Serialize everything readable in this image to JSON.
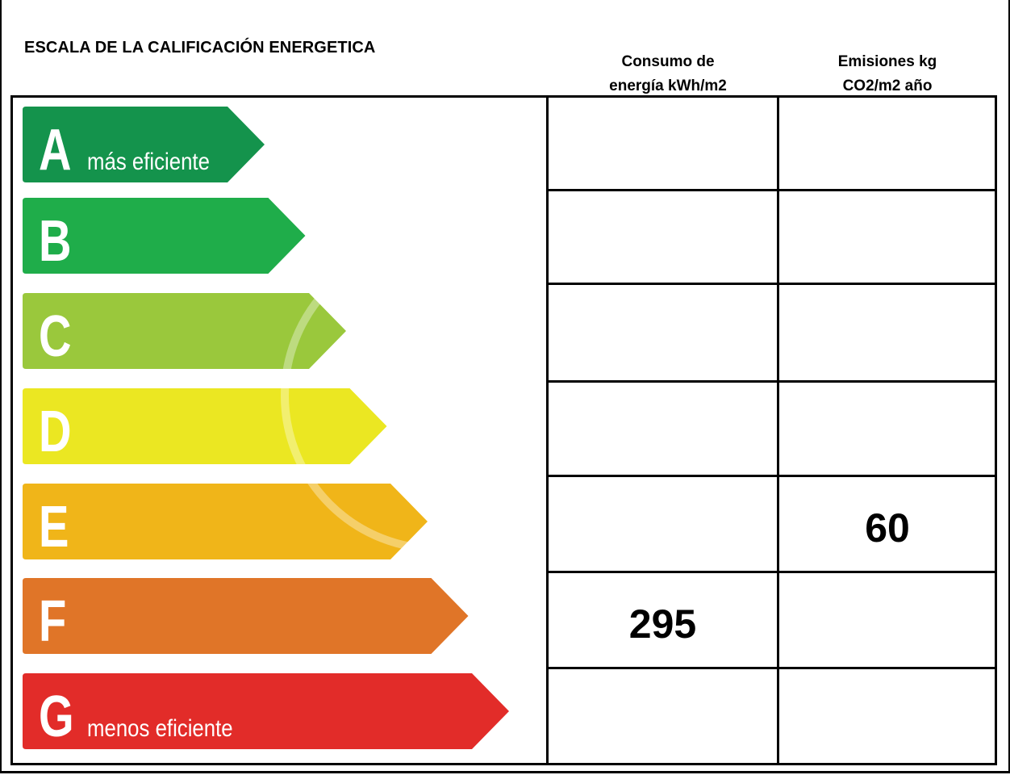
{
  "title": "ESCALA DE LA CALIFICACIÓN ENERGETICA",
  "columns": {
    "energy": "Consumo de\nenergía kWh/m2",
    "co2": "Emisiones kg\nCO2/m2 año"
  },
  "ratings": [
    {
      "letter": "A",
      "note": "más eficiente",
      "color": "#14934c"
    },
    {
      "letter": "B",
      "note": "",
      "color": "#1fad4a"
    },
    {
      "letter": "C",
      "note": "",
      "color": "#9ac83c"
    },
    {
      "letter": "D",
      "note": "",
      "color": "#ebe722"
    },
    {
      "letter": "E",
      "note": "",
      "color": "#f0b519"
    },
    {
      "letter": "F",
      "note": "",
      "color": "#e07528"
    },
    {
      "letter": "G",
      "note": "menos eficiente",
      "color": "#e22c29"
    }
  ],
  "values": {
    "energy": {
      "rating": "F",
      "value": "295"
    },
    "co2": {
      "rating": "E",
      "value": "60"
    }
  }
}
